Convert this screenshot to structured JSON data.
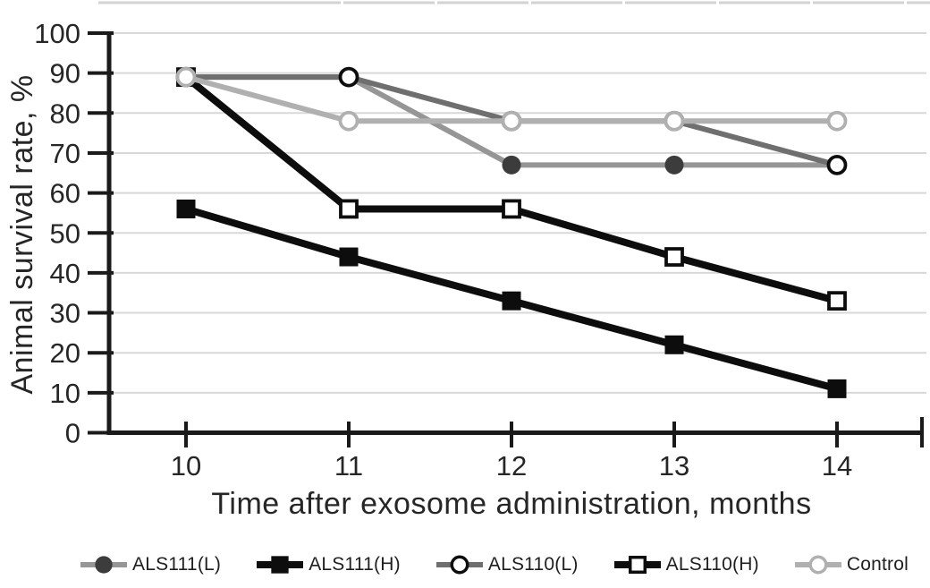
{
  "chart_data": {
    "type": "line",
    "title": "",
    "xlabel": "Time after exosome administration, months",
    "ylabel": "Animal survival rate, %",
    "x": [
      10,
      11,
      12,
      13,
      14
    ],
    "yticks": [
      0,
      10,
      20,
      30,
      40,
      50,
      60,
      70,
      80,
      90,
      100
    ],
    "ylim": [
      0,
      100
    ],
    "grid": "horizontal-only",
    "legend_position": "bottom",
    "colors": {
      "axis": "#1a1a1a",
      "gridline": "#d8d8d8",
      "text": "#262626",
      "top_border": "#d3d3d3"
    },
    "series": [
      {
        "name": "ALS111(L)",
        "values": [
          89,
          89,
          67,
          67,
          67
        ],
        "line_color": "#969696",
        "line_width": 6,
        "marker": "circle-filled",
        "marker_color": "#3c3c3c"
      },
      {
        "name": "ALS111(H)",
        "values": [
          56,
          44,
          33,
          22,
          11
        ],
        "line_color": "#0d0d0d",
        "line_width": 8,
        "marker": "square-filled",
        "marker_color": "#0d0d0d"
      },
      {
        "name": "ALS110(L)",
        "values": [
          89,
          89,
          78,
          78,
          67
        ],
        "line_color": "#6f6f6f",
        "line_width": 6,
        "marker": "circle-open",
        "marker_color": "#0d0d0d"
      },
      {
        "name": "ALS110(H)",
        "values": [
          89,
          56,
          56,
          44,
          33
        ],
        "line_color": "#0d0d0d",
        "line_width": 8,
        "marker": "square-open",
        "marker_color": "#0d0d0d"
      },
      {
        "name": "Control",
        "values": [
          89,
          78,
          78,
          78,
          78
        ],
        "line_color": "#b0b0b0",
        "line_width": 6,
        "marker": "circle-open",
        "marker_color": "#b0b0b0"
      }
    ]
  }
}
